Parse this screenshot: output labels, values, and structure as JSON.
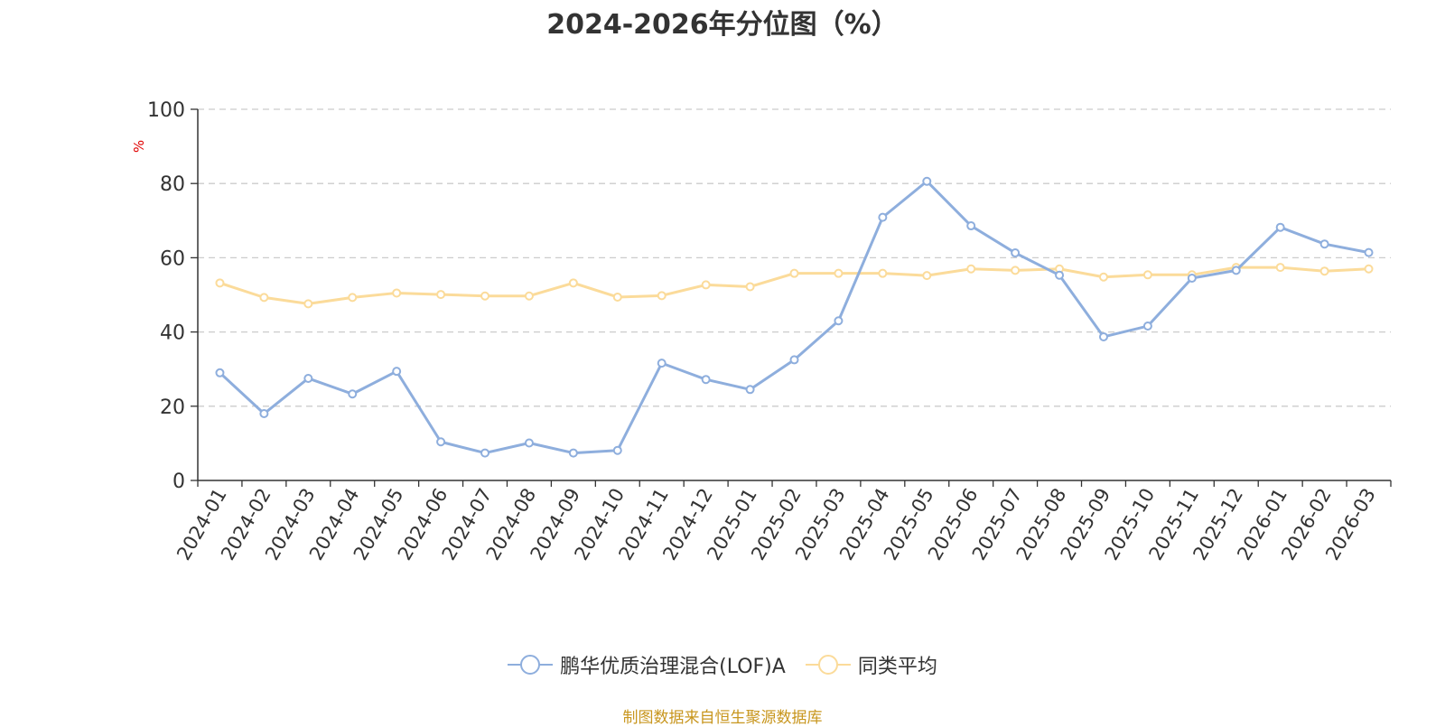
{
  "chart_data": {
    "type": "line",
    "title": "2024-2026年分位图（%）",
    "ylabel": "%",
    "xlabel": "",
    "ylim": [
      0,
      100
    ],
    "yticks": [
      0,
      20,
      40,
      60,
      80,
      100
    ],
    "grid": true,
    "legend_position": "bottom-center",
    "categories": [
      "2024-01",
      "2024-02",
      "2024-03",
      "2024-04",
      "2024-05",
      "2024-06",
      "2024-07",
      "2024-08",
      "2024-09",
      "2024-10",
      "2024-11",
      "2024-12",
      "2025-01",
      "2025-02",
      "2025-03",
      "2025-04",
      "2025-05",
      "2025-06",
      "2025-07",
      "2025-08",
      "2025-09",
      "2025-10",
      "2025-11",
      "2025-12",
      "2026-01",
      "2026-02",
      "2026-03"
    ],
    "series": [
      {
        "name": "鹏华优质治理混合(LOF)A",
        "color": "#8eaedd",
        "values": [
          29.0,
          18.0,
          27.5,
          23.3,
          29.4,
          10.4,
          7.4,
          10.1,
          7.4,
          8.1,
          31.6,
          27.2,
          24.5,
          32.5,
          43.0,
          70.9,
          80.6,
          68.6,
          61.3,
          55.3,
          38.7,
          41.6,
          54.5,
          56.6,
          68.2,
          63.7,
          61.4
        ]
      },
      {
        "name": "同类平均",
        "color": "#fbdb9a",
        "values": [
          53.2,
          49.3,
          47.6,
          49.3,
          50.5,
          50.1,
          49.7,
          49.7,
          53.2,
          49.4,
          49.8,
          52.7,
          52.2,
          55.8,
          55.8,
          55.8,
          55.2,
          57.0,
          56.6,
          57.0,
          54.8,
          55.4,
          55.4,
          57.4,
          57.4,
          56.4,
          57.0
        ]
      }
    ]
  },
  "footer": {
    "source": "制图数据来自恒生聚源数据库"
  }
}
